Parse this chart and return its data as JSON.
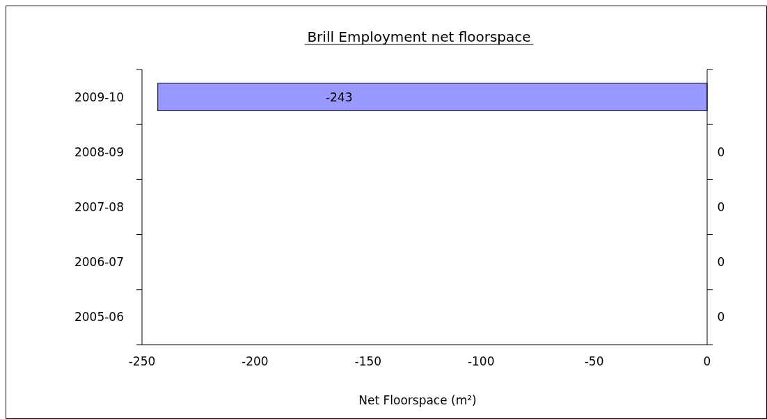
{
  "chart_data": {
    "type": "bar",
    "orientation": "horizontal",
    "title": "Brill Employment net floorspace",
    "xlabel": "Net Floorspace (m²)",
    "categories": [
      "2009-10",
      "2008-09",
      "2007-08",
      "2006-07",
      "2005-06"
    ],
    "values": [
      -243,
      0,
      0,
      0,
      0
    ],
    "color": "#9999ff",
    "xlim": [
      -250,
      0
    ],
    "xticks": [
      -250,
      -200,
      -150,
      -100,
      -50,
      0
    ],
    "data_labels": true
  }
}
